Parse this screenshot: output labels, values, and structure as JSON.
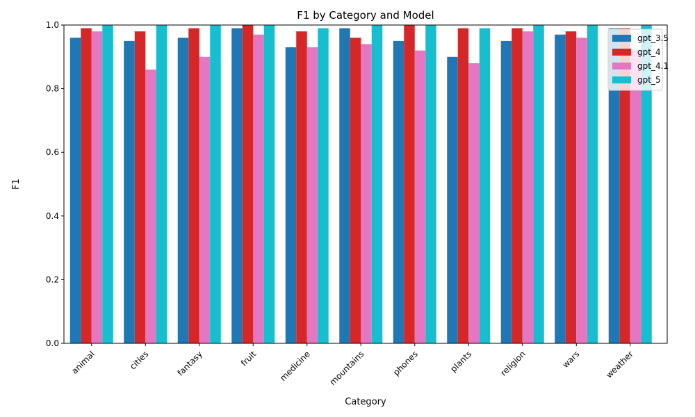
{
  "chart_data": {
    "type": "bar",
    "title": "F1 by Category and Model",
    "xlabel": "Category",
    "ylabel": "F1",
    "ylim": [
      0,
      1.0
    ],
    "yticks": [
      "0.0",
      "0.2",
      "0.4",
      "0.6",
      "0.8",
      "1.0"
    ],
    "grid": false,
    "legend_position": "top-right",
    "categories": [
      "animal",
      "cities",
      "fantasy",
      "fruit",
      "medicine",
      "mountains",
      "phones",
      "plants",
      "religion",
      "wars",
      "weather"
    ],
    "series": [
      {
        "name": "gpt_3.5",
        "color": "#1f77b4",
        "values": [
          0.96,
          0.95,
          0.96,
          0.99,
          0.93,
          0.99,
          0.95,
          0.9,
          0.95,
          0.97,
          0.99
        ]
      },
      {
        "name": "gpt_4",
        "color": "#d62728",
        "values": [
          0.99,
          0.98,
          0.99,
          1.0,
          0.98,
          0.96,
          1.0,
          0.99,
          0.99,
          0.98,
          0.99
        ]
      },
      {
        "name": "gpt_4.1",
        "color": "#e377c2",
        "values": [
          0.98,
          0.86,
          0.9,
          0.97,
          0.93,
          0.94,
          0.92,
          0.88,
          0.98,
          0.96,
          0.92
        ]
      },
      {
        "name": "gpt_5",
        "color": "#17becf",
        "values": [
          1.0,
          1.0,
          1.0,
          1.0,
          0.99,
          1.0,
          1.0,
          0.99,
          1.0,
          1.0,
          1.0
        ]
      }
    ]
  }
}
